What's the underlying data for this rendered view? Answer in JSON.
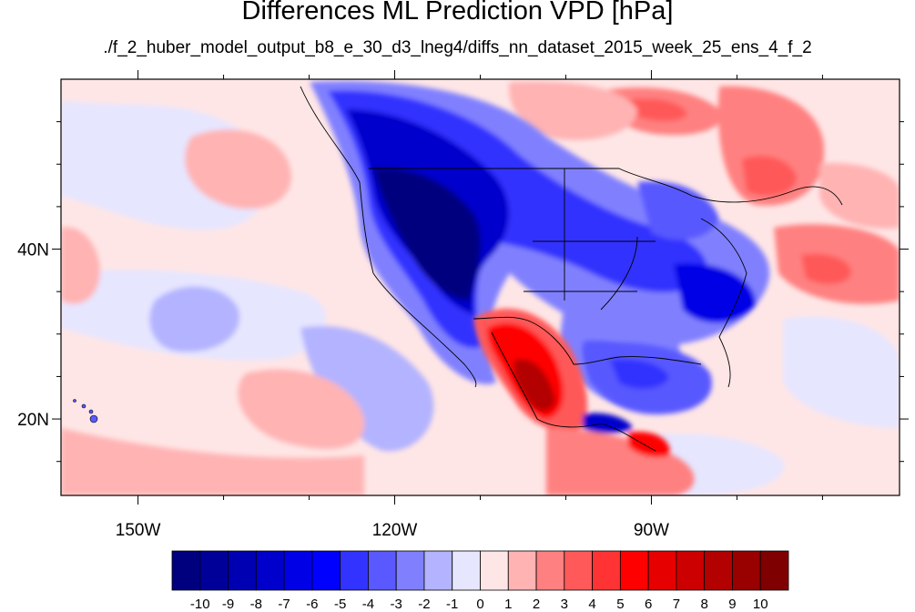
{
  "title": "Differences ML Prediction VPD [hPa]",
  "subtitle": "./f_2_huber_model_output_b8_e_30_d3_lneg4/diffs_nn_dataset_2015_week_25_ens_4_f_2",
  "axes": {
    "x_ticks": [
      {
        "value": -150,
        "label": "150W"
      },
      {
        "value": -120,
        "label": "120W"
      },
      {
        "value": -90,
        "label": "90W"
      }
    ],
    "y_ticks": [
      {
        "value": 40,
        "label": "40N"
      },
      {
        "value": 20,
        "label": "20N"
      }
    ],
    "lon_range": [
      -159,
      -61
    ],
    "lat_range": [
      11,
      60
    ]
  },
  "colorbar": {
    "levels": [
      "-10",
      "-9",
      "-8",
      "-7",
      "-6",
      "-5",
      "-4",
      "-3",
      "-2",
      "-1",
      "0",
      "1",
      "2",
      "3",
      "4",
      "5",
      "6",
      "7",
      "8",
      "9",
      "10"
    ],
    "colors": [
      "#00007f",
      "#000099",
      "#0000b3",
      "#0000cc",
      "#0000e6",
      "#0000ff",
      "#3333ff",
      "#5959ff",
      "#8080ff",
      "#b3b3ff",
      "#e6e6ff",
      "#ffe6e6",
      "#ffb3b3",
      "#ff8080",
      "#ff5959",
      "#ff3333",
      "#ff0000",
      "#e60000",
      "#cc0000",
      "#b30000",
      "#990000",
      "#7f0000"
    ]
  }
}
